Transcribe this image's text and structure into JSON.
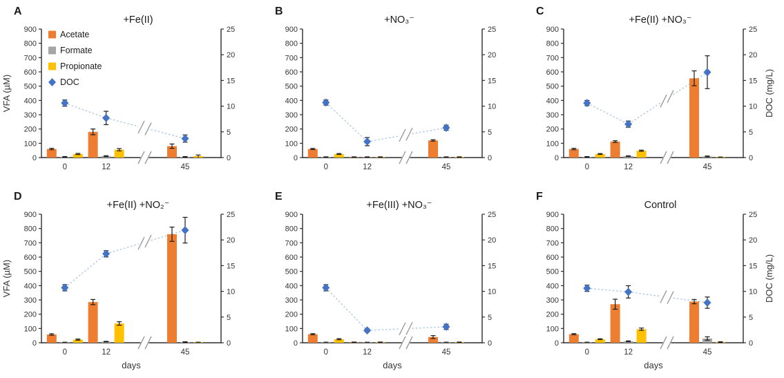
{
  "figure": {
    "background": "#FFFFFF",
    "left_axis": {
      "label": "VFA (µM)",
      "min": 0,
      "max": 900,
      "step": 100
    },
    "right_axis": {
      "label": "DOC (mg/L)",
      "min": 0,
      "max": 25,
      "step": 5
    },
    "x_axis": {
      "label": "days",
      "ticks": [
        "0",
        "12",
        "45"
      ],
      "break_between": [
        "12",
        "45"
      ]
    },
    "legend": [
      {
        "label": "Acetate",
        "marker": "square",
        "color": "#ED7D31"
      },
      {
        "label": "Formate",
        "marker": "square",
        "color": "#A5A5A5"
      },
      {
        "label": "Propionate",
        "marker": "square",
        "color": "#FFC000"
      },
      {
        "label": "DOC",
        "marker": "diamond",
        "color": "#4472C4"
      }
    ],
    "line_color": "#A9C5E2",
    "error_bar_color": "#1a1a1a",
    "axis_color": "#404040",
    "break_mark_color": "#9b9b9b"
  },
  "chart_data": [
    {
      "panel": "A",
      "title": "+Fe(II)",
      "type": "bar+line dual-axis",
      "categories": [
        0,
        12,
        45
      ],
      "series": [
        {
          "name": "Acetate",
          "axis": "left",
          "unit": "µM",
          "values": [
            60,
            180,
            80
          ],
          "errors": [
            5,
            20,
            15
          ]
        },
        {
          "name": "Formate",
          "axis": "left",
          "unit": "µM",
          "values": [
            5,
            10,
            5
          ],
          "errors": [
            2,
            3,
            2
          ]
        },
        {
          "name": "Propionate",
          "axis": "left",
          "unit": "µM",
          "values": [
            25,
            55,
            10
          ],
          "errors": [
            4,
            8,
            8
          ]
        },
        {
          "name": "DOC",
          "axis": "right",
          "unit": "mg/L",
          "values": [
            10.6,
            7.7,
            3.7
          ],
          "errors": [
            0.6,
            1.3,
            0.7
          ]
        }
      ]
    },
    {
      "panel": "B",
      "title": "+NO₃⁻",
      "type": "bar+line dual-axis",
      "categories": [
        0,
        12,
        45
      ],
      "series": [
        {
          "name": "Acetate",
          "axis": "left",
          "unit": "µM",
          "values": [
            60,
            4,
            120
          ],
          "errors": [
            4,
            1,
            5
          ]
        },
        {
          "name": "Formate",
          "axis": "left",
          "unit": "µM",
          "values": [
            4,
            4,
            4
          ],
          "errors": [
            1,
            1,
            1
          ]
        },
        {
          "name": "Propionate",
          "axis": "left",
          "unit": "µM",
          "values": [
            25,
            4,
            4
          ],
          "errors": [
            3,
            1,
            1
          ]
        },
        {
          "name": "DOC",
          "axis": "right",
          "unit": "mg/L",
          "values": [
            10.7,
            3.1,
            5.8
          ],
          "errors": [
            0.5,
            0.8,
            0.5
          ]
        }
      ]
    },
    {
      "panel": "C",
      "title": "+Fe(II) +NO₃⁻",
      "type": "bar+line dual-axis",
      "categories": [
        0,
        12,
        45
      ],
      "series": [
        {
          "name": "Acetate",
          "axis": "left",
          "unit": "µM",
          "values": [
            60,
            112,
            555
          ],
          "errors": [
            5,
            6,
            52
          ]
        },
        {
          "name": "Formate",
          "axis": "left",
          "unit": "µM",
          "values": [
            5,
            10,
            8
          ],
          "errors": [
            2,
            2,
            3
          ]
        },
        {
          "name": "Propionate",
          "axis": "left",
          "unit": "µM",
          "values": [
            25,
            48,
            3
          ],
          "errors": [
            3,
            4,
            1
          ]
        },
        {
          "name": "DOC",
          "axis": "right",
          "unit": "mg/L",
          "values": [
            10.6,
            6.5,
            16.6
          ],
          "errors": [
            0.5,
            0.6,
            3.2
          ]
        }
      ]
    },
    {
      "panel": "D",
      "title": "+Fe(II) +NO₂⁻",
      "type": "bar+line dual-axis",
      "categories": [
        0,
        12,
        45
      ],
      "series": [
        {
          "name": "Acetate",
          "axis": "left",
          "unit": "µM",
          "values": [
            58,
            285,
            760
          ],
          "errors": [
            5,
            18,
            50
          ]
        },
        {
          "name": "Formate",
          "axis": "left",
          "unit": "µM",
          "values": [
            3,
            8,
            5
          ],
          "errors": [
            1,
            2,
            2
          ]
        },
        {
          "name": "Propionate",
          "axis": "left",
          "unit": "µM",
          "values": [
            22,
            135,
            3
          ],
          "errors": [
            4,
            12,
            1
          ]
        },
        {
          "name": "DOC",
          "axis": "right",
          "unit": "mg/L",
          "values": [
            10.7,
            17.3,
            21.9
          ],
          "errors": [
            0.6,
            0.6,
            2.5
          ]
        }
      ]
    },
    {
      "panel": "E",
      "title": "+Fe(III) +NO₃⁻",
      "type": "bar+line dual-axis",
      "categories": [
        0,
        12,
        45
      ],
      "series": [
        {
          "name": "Acetate",
          "axis": "left",
          "unit": "µM",
          "values": [
            60,
            4,
            40
          ],
          "errors": [
            4,
            1,
            10
          ]
        },
        {
          "name": "Formate",
          "axis": "left",
          "unit": "µM",
          "values": [
            3,
            3,
            3
          ],
          "errors": [
            1,
            1,
            1
          ]
        },
        {
          "name": "Propionate",
          "axis": "left",
          "unit": "µM",
          "values": [
            25,
            4,
            4
          ],
          "errors": [
            4,
            1,
            1
          ]
        },
        {
          "name": "DOC",
          "axis": "right",
          "unit": "mg/L",
          "values": [
            10.7,
            2.4,
            3.1
          ],
          "errors": [
            0.6,
            0.3,
            0.5
          ]
        }
      ]
    },
    {
      "panel": "F",
      "title": "Control",
      "type": "bar+line dual-axis",
      "categories": [
        0,
        12,
        45
      ],
      "series": [
        {
          "name": "Acetate",
          "axis": "left",
          "unit": "µM",
          "values": [
            60,
            270,
            288
          ],
          "errors": [
            4,
            35,
            15
          ]
        },
        {
          "name": "Formate",
          "axis": "left",
          "unit": "µM",
          "values": [
            3,
            10,
            30
          ],
          "errors": [
            1,
            3,
            12
          ]
        },
        {
          "name": "Propionate",
          "axis": "left",
          "unit": "µM",
          "values": [
            25,
            95,
            5
          ],
          "errors": [
            3,
            8,
            2
          ]
        },
        {
          "name": "DOC",
          "axis": "right",
          "unit": "mg/L",
          "values": [
            10.6,
            9.9,
            7.8
          ],
          "errors": [
            0.6,
            1.2,
            1.1
          ]
        }
      ]
    }
  ]
}
